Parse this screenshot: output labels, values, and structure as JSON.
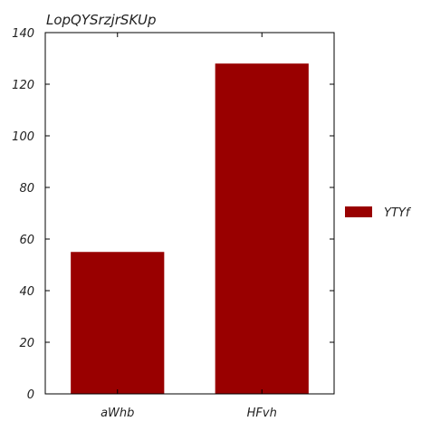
{
  "chart_data": {
    "type": "bar",
    "title": "LopQYSrzjrSKUp",
    "xlabel": "",
    "ylabel": "",
    "categories": [
      "aWhb",
      "HFvh"
    ],
    "series": [
      {
        "name": "YTYf",
        "values": [
          55,
          128
        ],
        "color": "#990000"
      }
    ],
    "ylim": [
      0,
      140
    ],
    "yticks": [
      0,
      20,
      40,
      60,
      80,
      100,
      120,
      140
    ],
    "grid": false,
    "legend_position": "right"
  }
}
